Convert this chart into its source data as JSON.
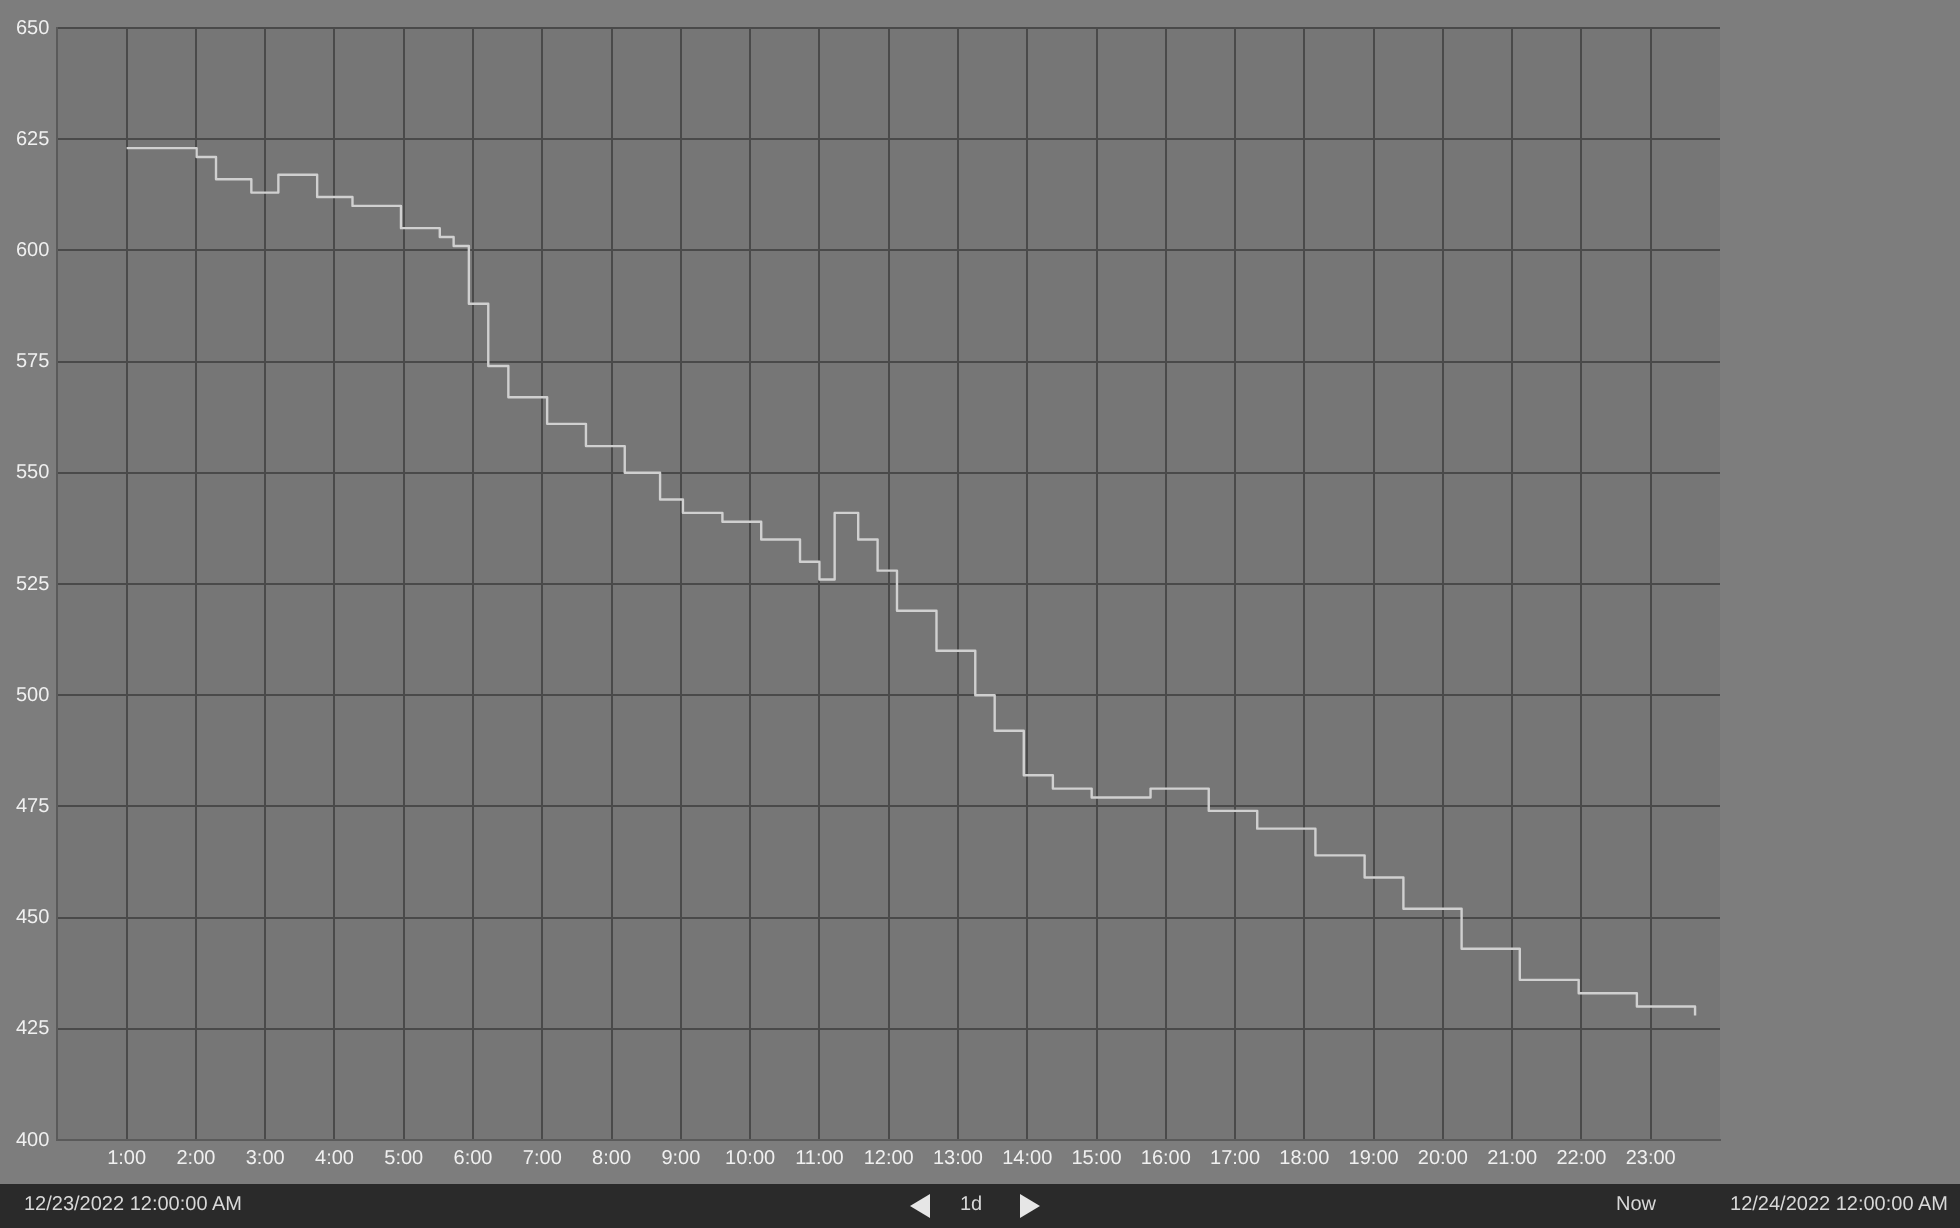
{
  "chart_data": {
    "type": "step",
    "x": [
      1.0,
      2.01,
      2.29,
      2.8,
      3.19,
      3.75,
      4.26,
      4.96,
      5.52,
      5.72,
      5.94,
      6.22,
      6.51,
      7.07,
      7.63,
      8.19,
      8.7,
      9.03,
      9.6,
      10.16,
      10.72,
      11.0,
      11.22,
      11.56,
      11.84,
      12.12,
      12.69,
      13.25,
      13.53,
      13.95,
      14.37,
      14.93,
      15.78,
      16.62,
      17.32,
      18.16,
      18.87,
      19.43,
      20.27,
      21.11,
      21.96,
      22.8,
      23.64
    ],
    "series": [
      {
        "color": "#d0d0d0",
        "values": [
          623,
          621,
          616,
          613,
          617,
          612,
          610,
          605,
          603,
          601,
          588,
          574,
          567,
          561,
          556,
          550,
          544,
          541,
          539,
          535,
          530,
          526,
          541,
          535,
          528,
          519,
          510,
          500,
          492,
          482,
          479,
          477,
          479,
          474,
          470,
          464,
          459,
          452,
          443,
          436,
          433,
          430,
          428
        ]
      }
    ],
    "xlim": [
      0,
      24
    ],
    "xticks": [
      {
        "value": 1,
        "label": "1:00"
      },
      {
        "value": 2,
        "label": "2:00"
      },
      {
        "value": 3,
        "label": "3:00"
      },
      {
        "value": 4,
        "label": "4:00"
      },
      {
        "value": 5,
        "label": "5:00"
      },
      {
        "value": 6,
        "label": "6:00"
      },
      {
        "value": 7,
        "label": "7:00"
      },
      {
        "value": 8,
        "label": "8:00"
      },
      {
        "value": 9,
        "label": "9:00"
      },
      {
        "value": 10,
        "label": "10:00"
      },
      {
        "value": 11,
        "label": "11:00"
      },
      {
        "value": 12,
        "label": "12:00"
      },
      {
        "value": 13,
        "label": "13:00"
      },
      {
        "value": 14,
        "label": "14:00"
      },
      {
        "value": 15,
        "label": "15:00"
      },
      {
        "value": 16,
        "label": "16:00"
      },
      {
        "value": 17,
        "label": "17:00"
      },
      {
        "value": 18,
        "label": "18:00"
      },
      {
        "value": 19,
        "label": "19:00"
      },
      {
        "value": 20,
        "label": "20:00"
      },
      {
        "value": 21,
        "label": "21:00"
      },
      {
        "value": 22,
        "label": "22:00"
      },
      {
        "value": 23,
        "label": "23:00"
      }
    ],
    "ylim": [
      400,
      650
    ],
    "yticks": [
      400,
      425,
      450,
      475,
      500,
      525,
      550,
      575,
      600,
      625,
      650
    ],
    "grid": true,
    "marker": "none",
    "annotations": [
      "12/23/2022 12:00:00 AM",
      "1d",
      "Now",
      "12/24/2022 12:00:00 AM"
    ]
  }
}
